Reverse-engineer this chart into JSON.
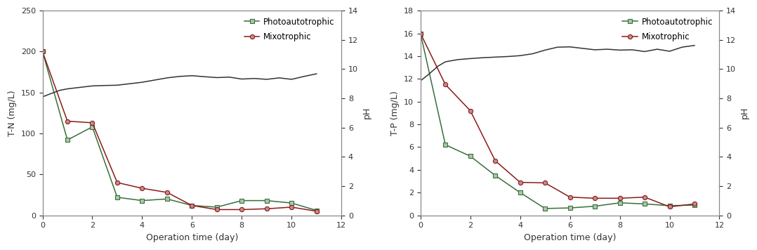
{
  "tn": {
    "ylabel": "T-N (mg/L)",
    "xlabel": "Operation time (day)",
    "xlim": [
      0,
      12
    ],
    "ylim": [
      0,
      250
    ],
    "yticks": [
      0,
      50,
      100,
      150,
      200,
      250
    ],
    "xticks": [
      0,
      2,
      4,
      6,
      8,
      10,
      12
    ],
    "photo_x": [
      0,
      1,
      2,
      3,
      4,
      5,
      6,
      7,
      8,
      9,
      10,
      11
    ],
    "photo_y": [
      200,
      92,
      108,
      22,
      18,
      20,
      12,
      10,
      18,
      18,
      15,
      6
    ],
    "mixo_x": [
      0,
      1,
      2,
      3,
      4,
      5,
      6,
      7,
      8,
      9,
      10,
      11
    ],
    "mixo_y": [
      200,
      115,
      113,
      40,
      33,
      28,
      12,
      7,
      7,
      8,
      10,
      5
    ],
    "ph_x": [
      0,
      0.3,
      0.7,
      1.0,
      1.5,
      2.0,
      2.5,
      3.0,
      3.5,
      4.0,
      4.5,
      5.0,
      5.5,
      6.0,
      6.5,
      7.0,
      7.5,
      8.0,
      8.5,
      9.0,
      9.5,
      10.0,
      10.5,
      11.0
    ],
    "ph_y": [
      8.1,
      8.3,
      8.55,
      8.65,
      8.75,
      8.85,
      8.88,
      8.9,
      9.0,
      9.1,
      9.25,
      9.4,
      9.5,
      9.55,
      9.48,
      9.42,
      9.45,
      9.32,
      9.36,
      9.3,
      9.4,
      9.3,
      9.5,
      9.68
    ],
    "ph_ylim": [
      0,
      14
    ],
    "ph_yticks": [
      0,
      2,
      4,
      6,
      8,
      10,
      12,
      14
    ]
  },
  "tp": {
    "ylabel": "T-P (mg/L)",
    "xlabel": "Operation time (day)",
    "xlim": [
      0,
      12
    ],
    "ylim": [
      0,
      18
    ],
    "yticks": [
      0,
      2,
      4,
      6,
      8,
      10,
      12,
      14,
      16,
      18
    ],
    "xticks": [
      0,
      2,
      4,
      6,
      8,
      10,
      12
    ],
    "photo_x": [
      0,
      1,
      2,
      3,
      4,
      5,
      6,
      7,
      8,
      9,
      10,
      11
    ],
    "photo_y": [
      16,
      6.2,
      5.2,
      3.5,
      2.0,
      0.6,
      0.65,
      0.8,
      1.1,
      1.0,
      0.85,
      0.9
    ],
    "mixo_x": [
      0,
      1,
      2,
      3,
      4,
      5,
      6,
      7,
      8,
      9,
      10,
      11
    ],
    "mixo_y": [
      16,
      11.5,
      9.2,
      4.8,
      2.9,
      2.85,
      1.6,
      1.5,
      1.5,
      1.6,
      0.75,
      1.0
    ],
    "ph_x": [
      0,
      0.3,
      0.7,
      1.0,
      1.5,
      2.0,
      2.5,
      3.0,
      3.5,
      4.0,
      4.5,
      5.0,
      5.5,
      6.0,
      6.5,
      7.0,
      7.5,
      8.0,
      8.5,
      9.0,
      9.5,
      10.0,
      10.5,
      11.0
    ],
    "ph_y": [
      9.2,
      9.6,
      10.2,
      10.5,
      10.65,
      10.72,
      10.78,
      10.82,
      10.86,
      10.92,
      11.05,
      11.3,
      11.5,
      11.52,
      11.42,
      11.32,
      11.36,
      11.3,
      11.32,
      11.2,
      11.36,
      11.22,
      11.5,
      11.62
    ],
    "ph_ylim": [
      0,
      14
    ],
    "ph_yticks": [
      0,
      2,
      4,
      6,
      8,
      10,
      12,
      14
    ]
  },
  "photo_color": "#3a6e3a",
  "mixo_color": "#8b1a1a",
  "ph_color": "#333333",
  "photo_marker": "s",
  "mixo_marker": "o",
  "photo_markerfacecolor": "#a8c8a8",
  "mixo_markerfacecolor": "#c88888",
  "legend_photo": "Photoautotrophic",
  "legend_mixo": "Mixotrophic",
  "bg_color": "#ffffff",
  "fig_bg": "#ffffff",
  "xlabel_color": "#333333",
  "ylabel_color": "#333333",
  "ph_ylabel": "pH"
}
